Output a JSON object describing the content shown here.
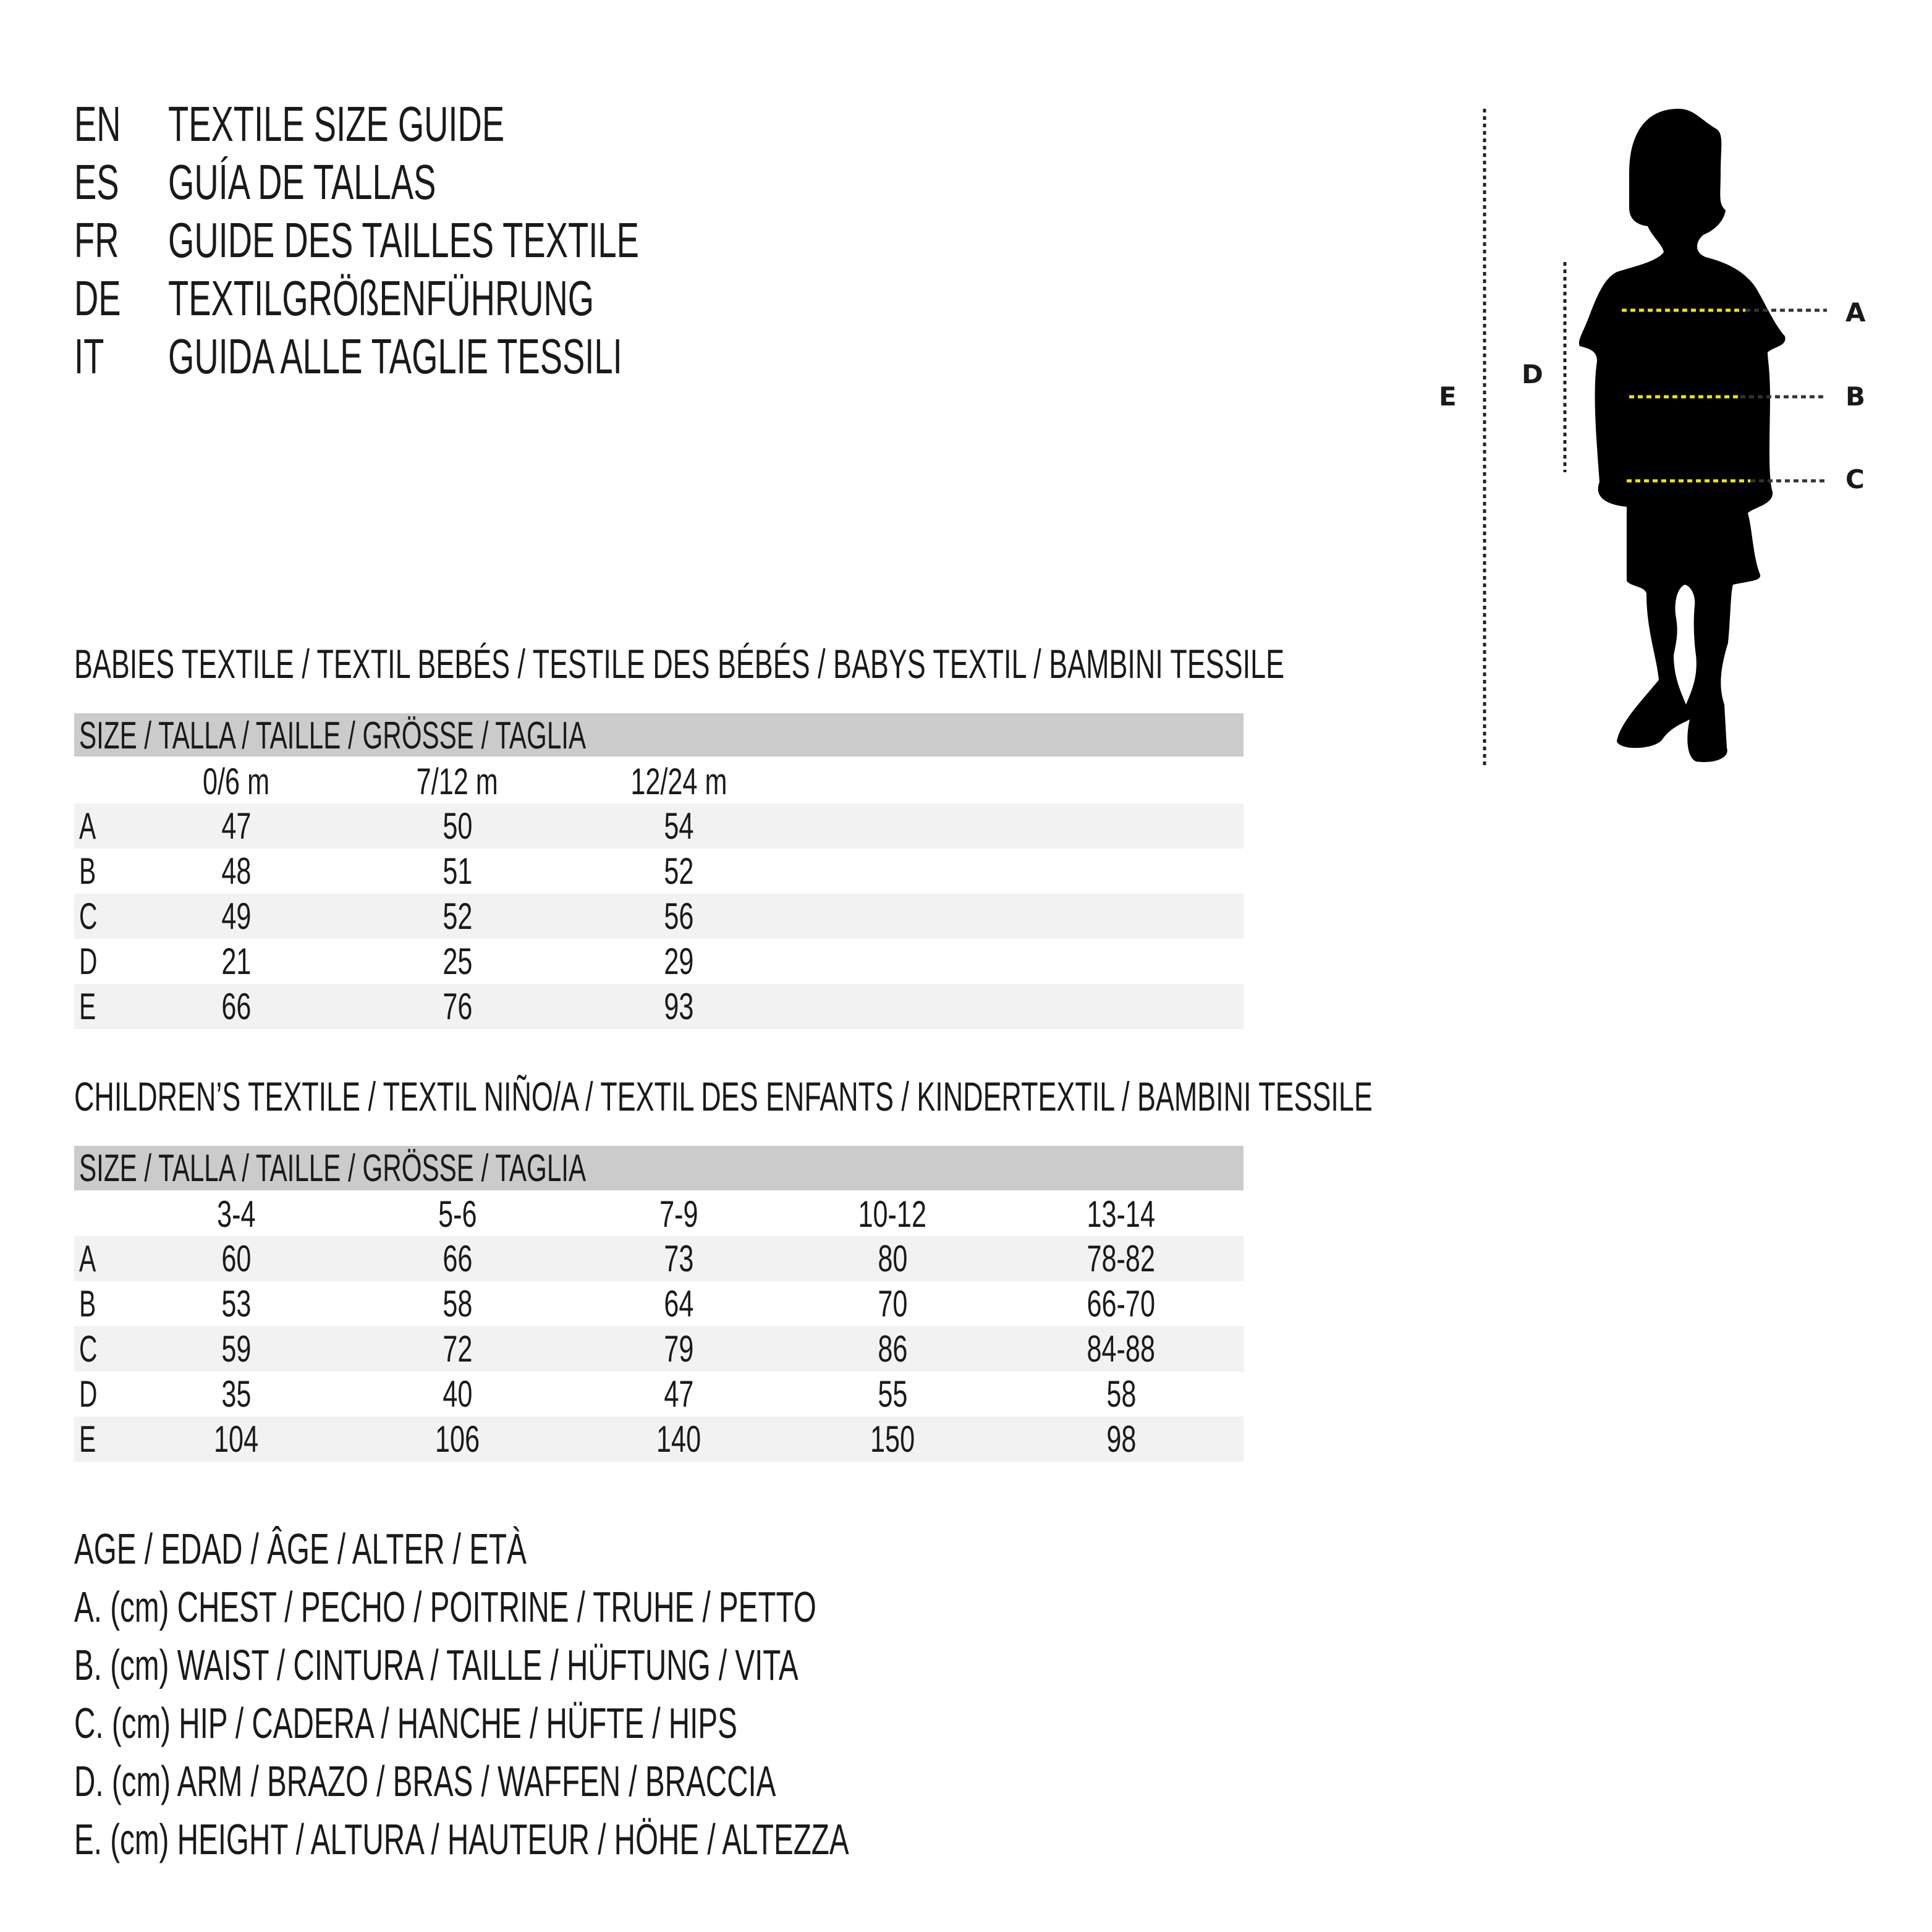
{
  "header": {
    "lines": [
      {
        "lang": "EN",
        "text": "TEXTILE SIZE GUIDE"
      },
      {
        "lang": "ES",
        "text": "GUÍA DE TALLAS"
      },
      {
        "lang": "FR",
        "text": "GUIDE DES TAILLES TEXTILE"
      },
      {
        "lang": "DE",
        "text": "TEXTILGRÖßENFÜHRUNG"
      },
      {
        "lang": "IT",
        "text": "GUIDA ALLE TAGLIE TESSILI"
      }
    ]
  },
  "figure": {
    "labels": {
      "A": "A",
      "B": "B",
      "C": "C",
      "D": "D",
      "E": "E"
    },
    "silhouette_color": "#000000",
    "measure_line_color": "#f2e600"
  },
  "babies": {
    "heading": "BABIES TEXTILE / TEXTIL BEBÉS / TESTILE DES BÉBÉS / BABYS TEXTIL / BAMBINI TESSILE",
    "size_label": "SIZE / TALLA / TAILLE / GRÖSSE / TAGLIA",
    "columns": [
      "0/6 m",
      "7/12 m",
      "12/24 m"
    ],
    "rows": [
      {
        "label": "A",
        "values": [
          "47",
          "50",
          "54"
        ]
      },
      {
        "label": "B",
        "values": [
          "48",
          "51",
          "52"
        ]
      },
      {
        "label": "C",
        "values": [
          "49",
          "52",
          "56"
        ]
      },
      {
        "label": "D",
        "values": [
          "21",
          "25",
          "29"
        ]
      },
      {
        "label": "E",
        "values": [
          "66",
          "76",
          "93"
        ]
      }
    ]
  },
  "children": {
    "heading": "CHILDREN’S TEXTILE / TEXTIL NIÑO/A / TEXTIL DES ENFANTS / KINDERTEXTIL / BAMBINI TESSILE",
    "size_label": "SIZE / TALLA / TAILLE / GRÖSSE / TAGLIA",
    "columns": [
      "3-4",
      "5-6",
      "7-9",
      "10-12",
      "13-14"
    ],
    "rows": [
      {
        "label": "A",
        "values": [
          "60",
          "66",
          "73",
          "80",
          "78-82"
        ]
      },
      {
        "label": "B",
        "values": [
          "53",
          "58",
          "64",
          "70",
          "66-70"
        ]
      },
      {
        "label": "C",
        "values": [
          "59",
          "72",
          "79",
          "86",
          "84-88"
        ]
      },
      {
        "label": "D",
        "values": [
          "35",
          "40",
          "47",
          "55",
          "58"
        ]
      },
      {
        "label": "E",
        "values": [
          "104",
          "106",
          "140",
          "150",
          "98"
        ]
      }
    ]
  },
  "legend": [
    "AGE / EDAD / ÂGE / ALTER / ETÀ",
    "A. (cm) CHEST / PECHO / POITRINE / TRUHE / PETTO",
    "B. (cm) WAIST / CINTURA / TAILLE / HÜFTUNG / VITA",
    "C. (cm) HIP / CADERA / HANCHE / HÜFTE / HIPS",
    "D. (cm) ARM / BRAZO / BRAS / WAFFEN / BRACCIA",
    "E. (cm) HEIGHT / ALTURA / HAUTEUR / HÖHE / ALTEZZA"
  ]
}
